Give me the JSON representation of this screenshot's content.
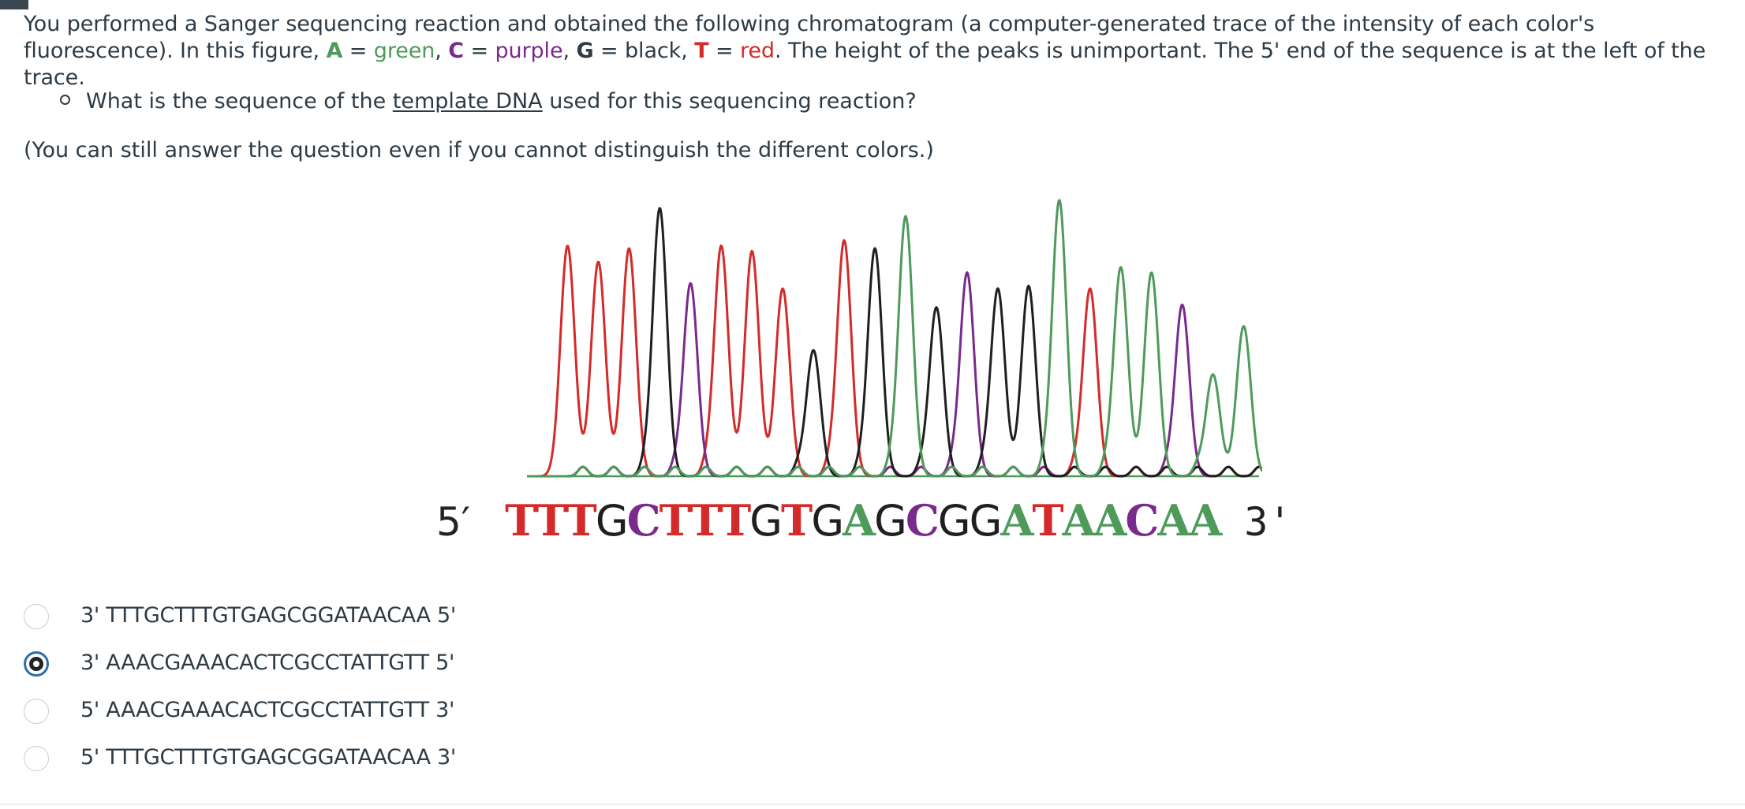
{
  "question": {
    "intro": "You performed a Sanger sequencing reaction and obtained the following chromatogram (a computer-generated trace of the intensity of each color's fluorescence). In this figure, ",
    "legend": [
      {
        "letter": "A",
        "color_word": "green"
      },
      {
        "letter": "C",
        "color_word": "purple"
      },
      {
        "letter": "G",
        "color_word": "black"
      },
      {
        "letter": "T",
        "color_word": "red"
      }
    ],
    "outro": ". The height of the peaks is unimportant.  The 5' end of the sequence is at the left of the trace.",
    "sub_question_pre": "What is the sequence of the ",
    "sub_question_underlined": "template DNA",
    "sub_question_post": " used for this sequencing reaction?",
    "note": "(You can still answer the question even if you cannot distinguish the different colors.)"
  },
  "figure": {
    "end5_label": "5′",
    "end3_label": "3'",
    "sequence": "TTTGCTTTGTGAGCGGATAACAA",
    "base_colors": {
      "A": "#4e9a5a",
      "C": "#7a2a8c",
      "G": "#1f1f1f",
      "T": "#d42a2a"
    },
    "peak_heights": [
      0.86,
      0.8,
      0.85,
      1.0,
      0.72,
      0.86,
      0.84,
      0.7,
      0.47,
      0.88,
      0.85,
      0.97,
      0.63,
      0.76,
      0.7,
      0.71,
      1.03,
      0.7,
      0.78,
      0.76,
      0.64,
      0.38,
      0.56
    ]
  },
  "options": [
    {
      "label": "3' TTTGCTTTGTGAGCGGATAACAA 5'",
      "selected": false
    },
    {
      "label": "3' AAACGAAACACTCGCCTATTGTT 5'",
      "selected": true
    },
    {
      "label": "5' AAACGAAACACTCGCCTATTGTT 3'",
      "selected": false
    },
    {
      "label": "5' TTTGCTTTGTGAGCGGATAACAA 3'",
      "selected": false
    }
  ]
}
